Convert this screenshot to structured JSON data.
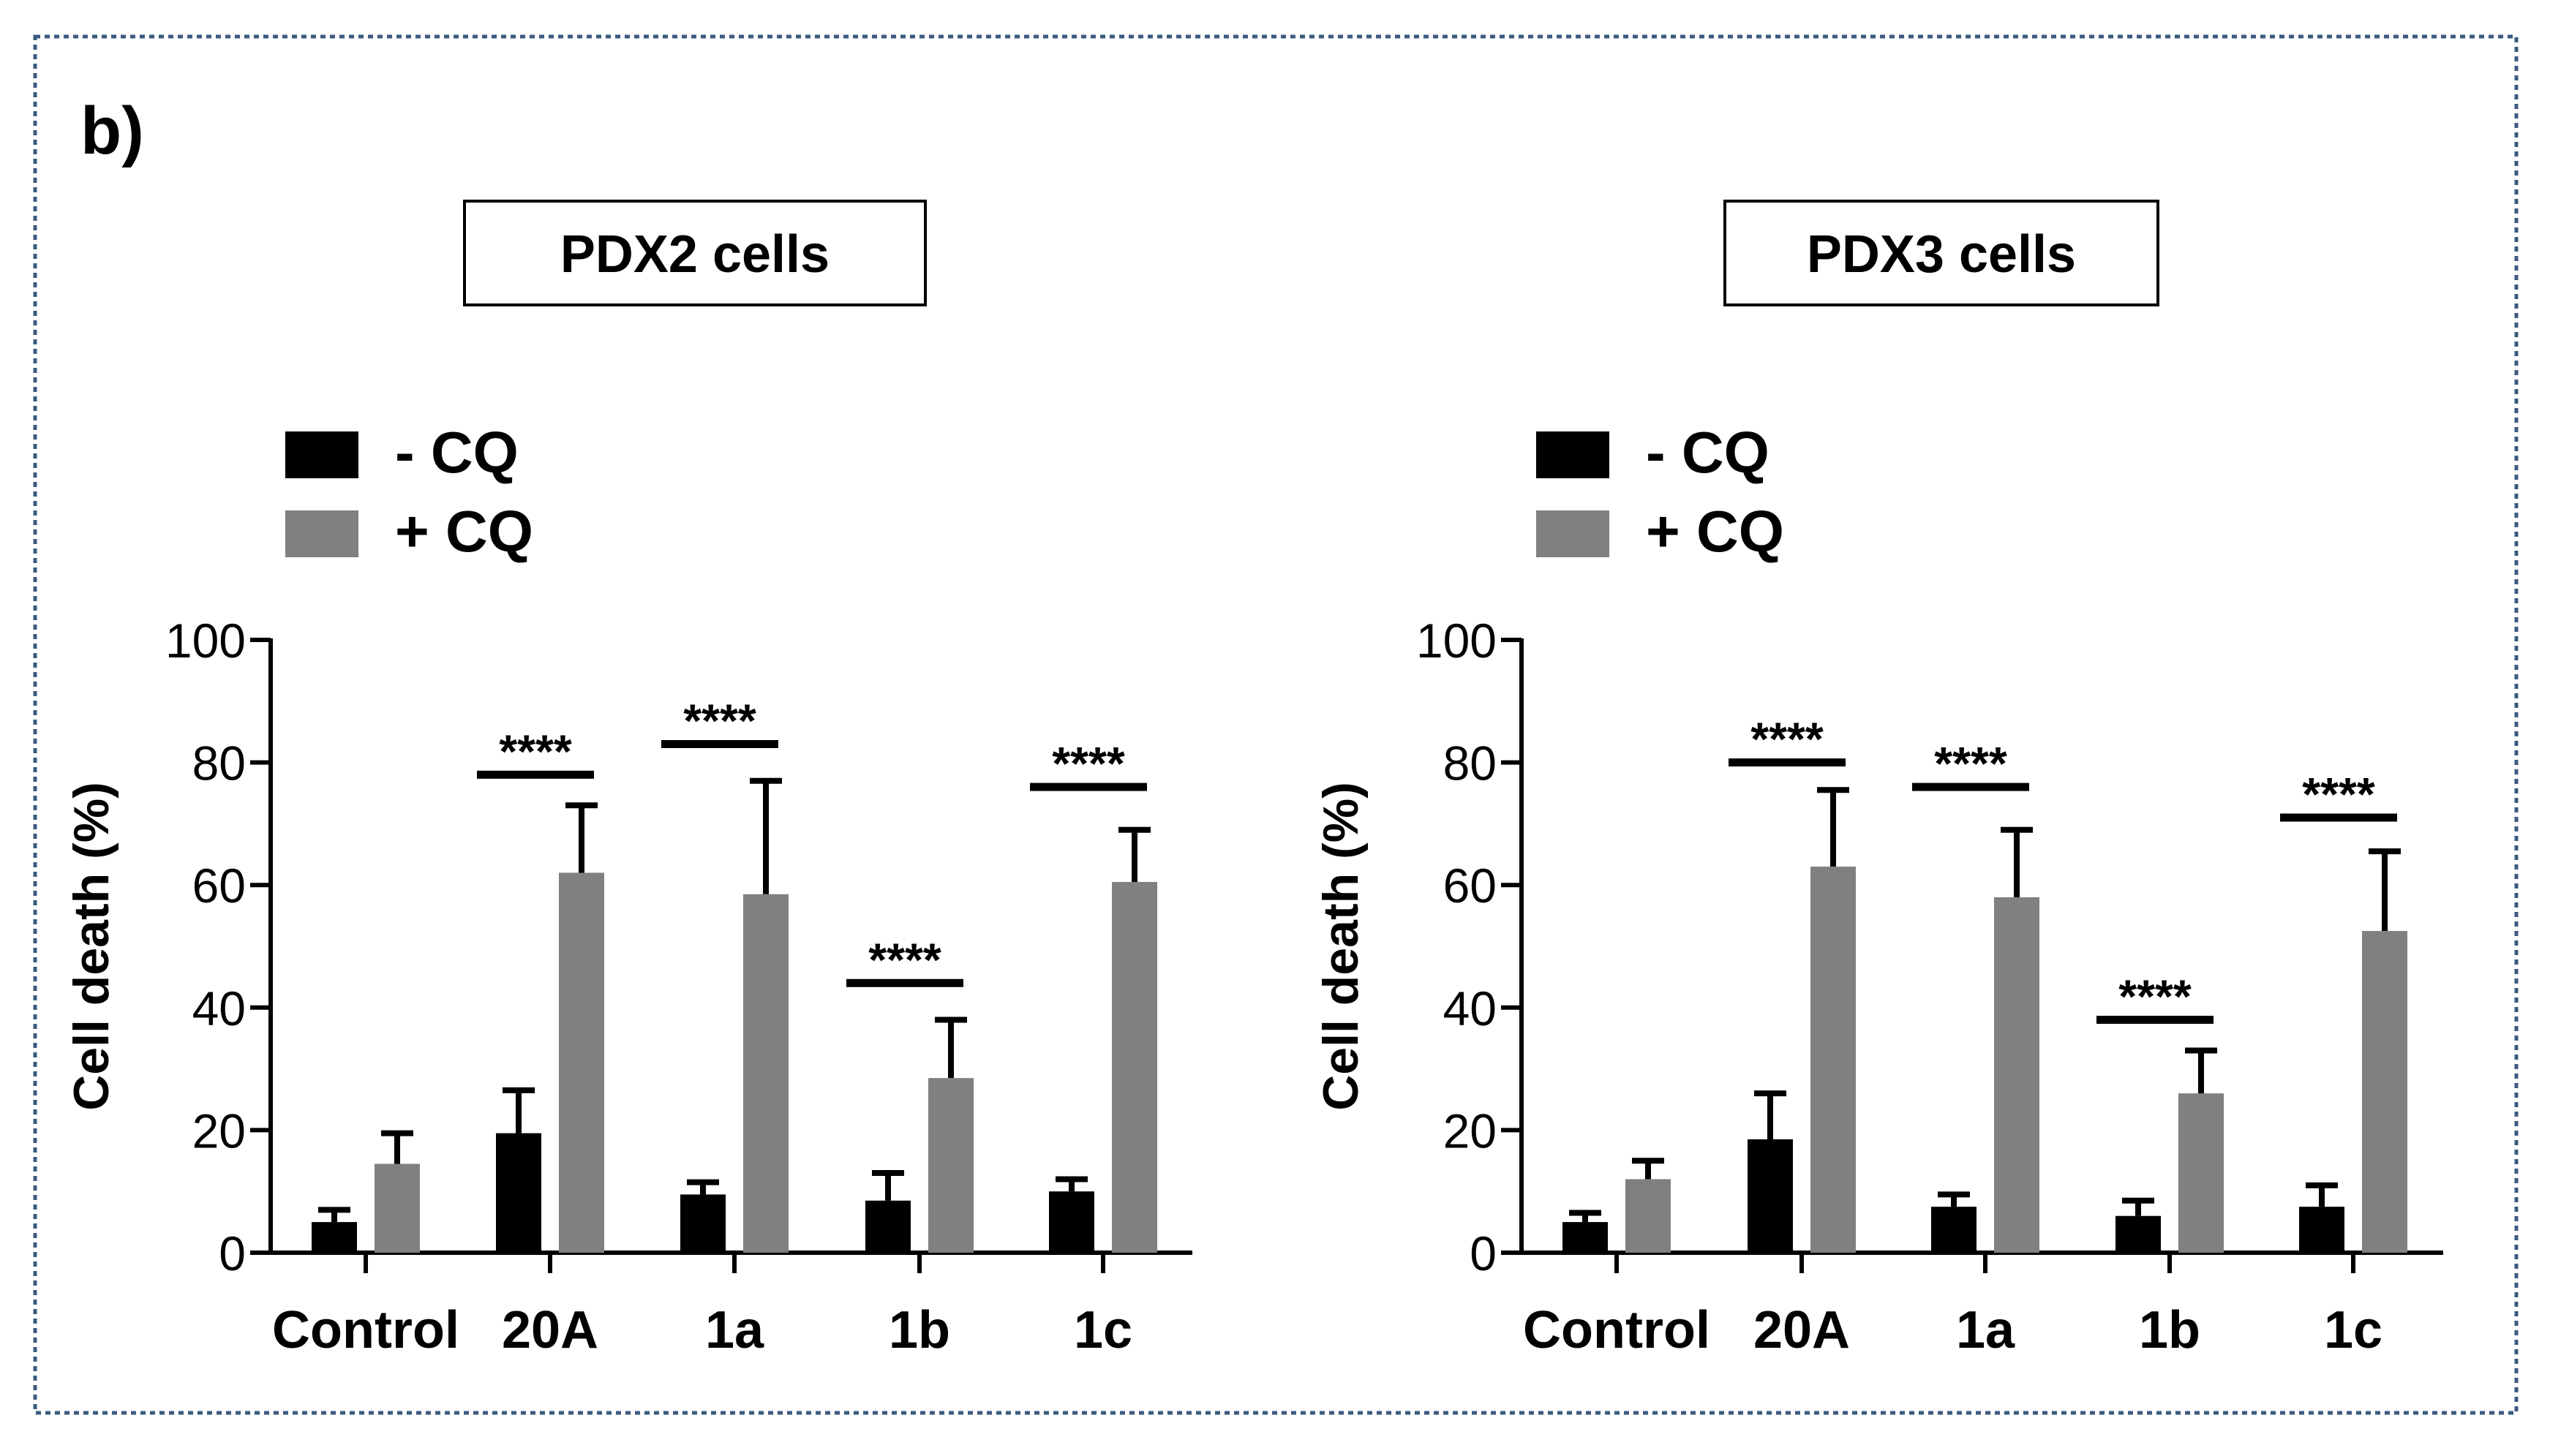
{
  "panel_label": "b)",
  "colors": {
    "minus_cq": "#000000",
    "plus_cq": "#808080",
    "frame": "#3a5a80"
  },
  "chart_data": [
    {
      "type": "bar",
      "title": "PDX2  cells",
      "ylabel": "Cell death (%)",
      "xlabel": "",
      "ylim": [
        0,
        100
      ],
      "yticks": [
        "0",
        "20",
        "40",
        "60",
        "80",
        "100"
      ],
      "categories": [
        "Control",
        "20A",
        "1a",
        "1b",
        "1c"
      ],
      "legend": {
        "placement": "top-left",
        "entries": [
          "- CQ",
          "+ CQ"
        ]
      },
      "series": [
        {
          "name": "- CQ",
          "values": [
            5,
            19.5,
            9.5,
            8.5,
            10
          ],
          "errors": [
            2,
            7,
            2,
            4.5,
            2
          ]
        },
        {
          "name": "+ CQ",
          "values": [
            14.5,
            62,
            58.5,
            28.5,
            60.5
          ],
          "errors": [
            5,
            11,
            18.5,
            9.5,
            8.5
          ]
        }
      ],
      "significance": [
        {
          "category": "20A",
          "label": "****",
          "y": 78
        },
        {
          "category": "1a",
          "label": "****",
          "y": 83
        },
        {
          "category": "1b",
          "label": "****",
          "y": 44
        },
        {
          "category": "1c",
          "label": "****",
          "y": 76
        }
      ]
    },
    {
      "type": "bar",
      "title": "PDX3 cells",
      "ylabel": "Cell death (%)",
      "xlabel": "",
      "ylim": [
        0,
        100
      ],
      "yticks": [
        "0",
        "20",
        "40",
        "60",
        "80",
        "100"
      ],
      "categories": [
        "Control",
        "20A",
        "1a",
        "1b",
        "1c"
      ],
      "legend": {
        "placement": "top-left",
        "entries": [
          "- CQ",
          "+ CQ"
        ]
      },
      "series": [
        {
          "name": "- CQ",
          "values": [
            5,
            18.5,
            7.5,
            6,
            7.5
          ],
          "errors": [
            1.5,
            7.5,
            2,
            2.5,
            3.5
          ]
        },
        {
          "name": "+ CQ",
          "values": [
            12,
            63,
            58,
            26,
            52.5
          ],
          "errors": [
            3,
            12.5,
            11,
            7,
            13
          ]
        }
      ],
      "significance": [
        {
          "category": "20A",
          "label": "****",
          "y": 80
        },
        {
          "category": "1a",
          "label": "****",
          "y": 76
        },
        {
          "category": "1b",
          "label": "****",
          "y": 38
        },
        {
          "category": "1c",
          "label": "****",
          "y": 71
        }
      ]
    }
  ]
}
